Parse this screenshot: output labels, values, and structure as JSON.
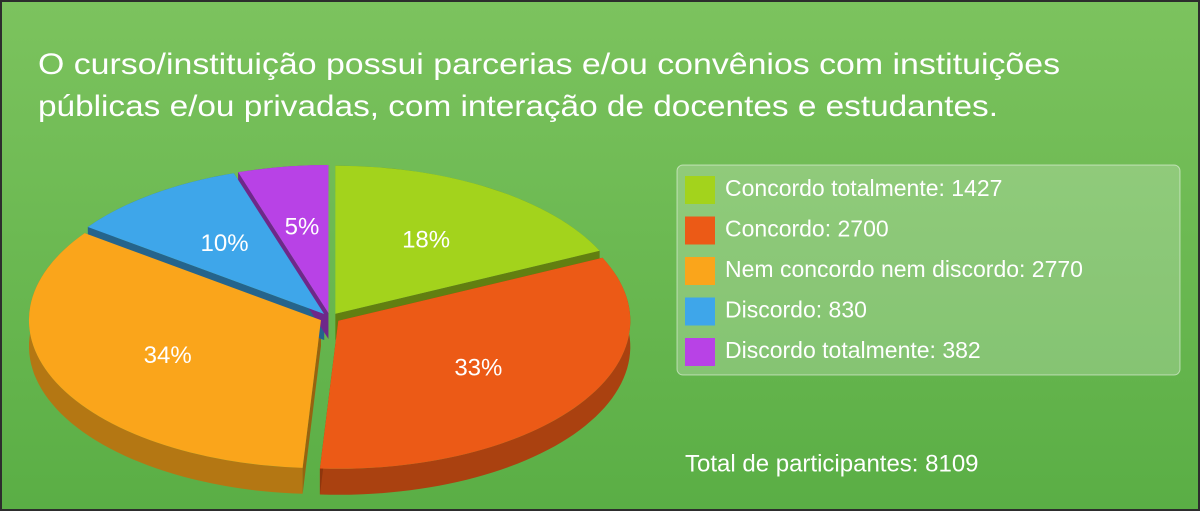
{
  "chart_data": {
    "type": "pie",
    "title": [
      "O curso/instituição possui parcerias e/ou convênios com instituições",
      "públicas e/ou privadas, com interação de docentes e estudantes."
    ],
    "categories": [
      "Concordo totalmente: 1427",
      "Concordo: 2700",
      "Nem concordo nem discordo: 2770",
      "Discordo: 830",
      "Discordo totalmente: 382"
    ],
    "values": [
      18,
      33,
      34,
      10,
      5
    ],
    "value_labels": [
      "18%",
      "33%",
      "34%",
      "10%",
      "5%"
    ],
    "colors": [
      "#a3d31c",
      "#ec5a16",
      "#faa51b",
      "#3ea6ea",
      "#b842e6"
    ],
    "annotation": "Total de participantes: 8109",
    "legend": "right"
  }
}
